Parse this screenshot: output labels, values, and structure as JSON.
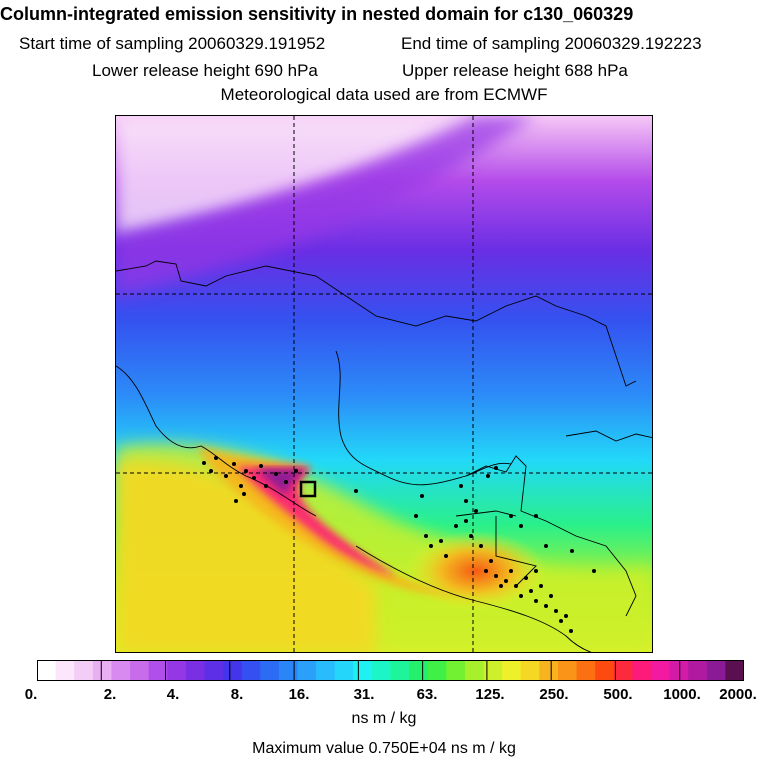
{
  "header": {
    "title": "Column-integrated emission sensitivity in nested domain for c130_060329",
    "start_label": "Start time of sampling 20060329.191952",
    "end_label": "End time of sampling 20060329.192223",
    "lower_label": "Lower release height  690 hPa",
    "upper_label": "Upper release height  688 hPa",
    "met_label": "Meteorological data used are from ECMWF"
  },
  "colorbar": {
    "colors": [
      "#ffffff",
      "#fbe6fb",
      "#f3cdf6",
      "#e8b0f3",
      "#d98af0",
      "#c86cec",
      "#b04fe9",
      "#9637e6",
      "#7a2fe3",
      "#5d2fe6",
      "#4535ea",
      "#3550f0",
      "#2c6bf4",
      "#2a86f7",
      "#2aa0fb",
      "#28bcfd",
      "#24d6fa",
      "#1ff0f2",
      "#1cf5c8",
      "#1ef59a",
      "#24f06c",
      "#3ff046",
      "#72f032",
      "#a6f02c",
      "#ccf02a",
      "#eef02a",
      "#f5d824",
      "#f8b41e",
      "#fa9418",
      "#fb7012",
      "#fc4a10",
      "#fc2a3c",
      "#fc1a7a",
      "#f21aa0",
      "#d41aa8",
      "#b01aa0",
      "#8a1a96",
      "#5a1050"
    ],
    "tick_labels": [
      "0.",
      "2.",
      "4.",
      "8.",
      "16.",
      "31.",
      "63.",
      "125.",
      "250.",
      "500.",
      "1000.",
      "2000."
    ],
    "units": "ns m / kg"
  },
  "max_value_label": "Maximum value  0.750E+04 ns m / kg",
  "map": {
    "receptor_marker": "square-marker",
    "grid": true
  }
}
